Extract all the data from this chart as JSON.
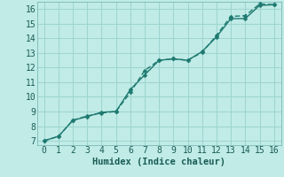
{
  "xlabel": "Humidex (Indice chaleur)",
  "background_color": "#c0ebe7",
  "grid_color": "#9dd4cf",
  "line_color": "#1e7a70",
  "xlim": [
    -0.5,
    16.5
  ],
  "ylim": [
    6.7,
    16.5
  ],
  "xticks": [
    0,
    1,
    2,
    3,
    4,
    5,
    6,
    7,
    8,
    9,
    10,
    11,
    12,
    13,
    14,
    15,
    16
  ],
  "yticks": [
    7,
    8,
    9,
    10,
    11,
    12,
    13,
    14,
    15,
    16
  ],
  "line1_x": [
    0,
    1,
    2,
    3,
    4,
    5,
    6,
    7,
    8,
    9,
    10,
    11,
    12,
    13,
    14,
    15,
    16
  ],
  "line1_y": [
    7.0,
    7.3,
    8.4,
    8.65,
    8.95,
    9.0,
    10.5,
    11.5,
    12.5,
    12.6,
    12.5,
    13.1,
    14.1,
    15.35,
    15.35,
    16.25,
    16.3
  ],
  "line2_x": [
    0,
    1,
    2,
    3,
    4,
    5,
    6,
    7,
    8,
    9,
    10,
    11,
    12,
    13,
    14,
    15,
    16
  ],
  "line2_y": [
    7.0,
    7.3,
    8.4,
    8.7,
    8.9,
    9.0,
    10.3,
    11.8,
    12.5,
    12.6,
    12.5,
    13.05,
    14.2,
    15.5,
    15.55,
    16.35,
    16.3
  ],
  "marker_size": 2.5,
  "line_width": 1.0,
  "font_size_tick": 7,
  "font_size_xlabel": 7.5
}
